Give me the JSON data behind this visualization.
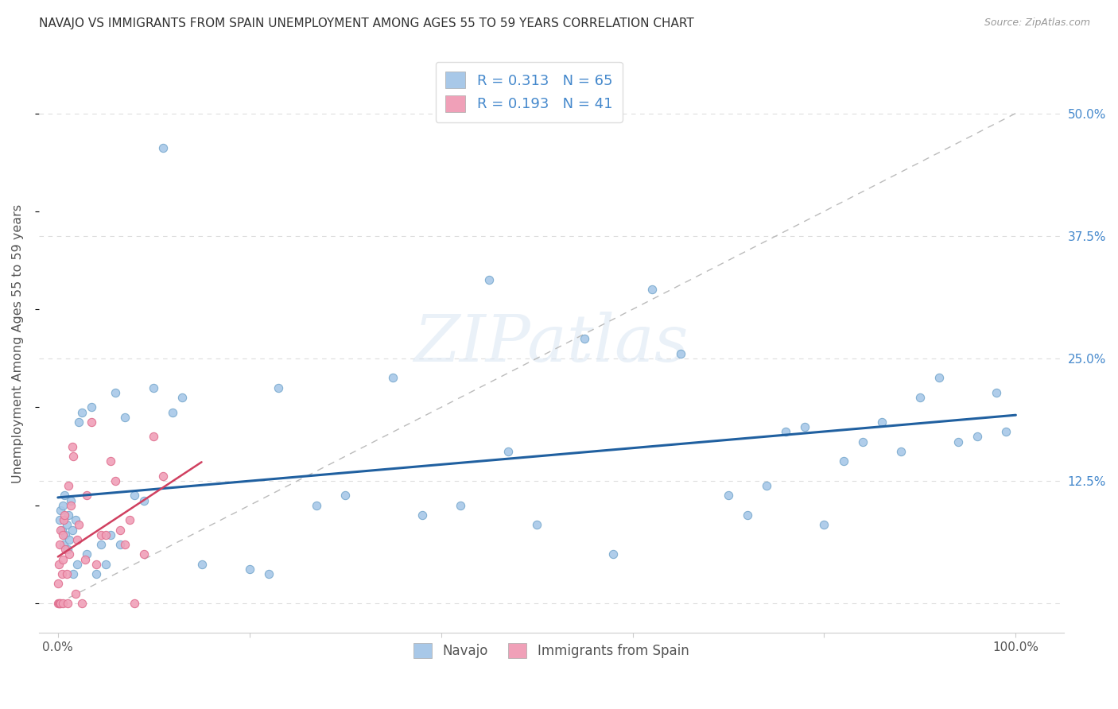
{
  "title": "NAVAJO VS IMMIGRANTS FROM SPAIN UNEMPLOYMENT AMONG AGES 55 TO 59 YEARS CORRELATION CHART",
  "source": "Source: ZipAtlas.com",
  "ylabel": "Unemployment Among Ages 55 to 59 years",
  "xlim": [
    -0.02,
    1.05
  ],
  "ylim": [
    -0.03,
    0.56
  ],
  "ytick_positions": [
    0.0,
    0.125,
    0.25,
    0.375,
    0.5
  ],
  "yticklabels_right": [
    "",
    "12.5%",
    "25.0%",
    "37.5%",
    "50.0%"
  ],
  "background_color": "#ffffff",
  "grid_color": "#dddddd",
  "watermark_text": "ZIPatlas",
  "navajo_color": "#a8c8e8",
  "spain_color": "#f0a0b8",
  "navajo_edge_color": "#7aaace",
  "spain_edge_color": "#e07090",
  "navajo_line_color": "#2060a0",
  "spain_line_color": "#d04060",
  "navajo_R": 0.313,
  "navajo_N": 65,
  "spain_R": 0.193,
  "spain_N": 41,
  "navajo_x": [
    0.002,
    0.003,
    0.004,
    0.005,
    0.006,
    0.007,
    0.008,
    0.009,
    0.01,
    0.011,
    0.012,
    0.013,
    0.015,
    0.016,
    0.018,
    0.02,
    0.022,
    0.025,
    0.03,
    0.035,
    0.04,
    0.045,
    0.05,
    0.055,
    0.06,
    0.065,
    0.07,
    0.08,
    0.09,
    0.1,
    0.11,
    0.12,
    0.13,
    0.15,
    0.2,
    0.22,
    0.23,
    0.27,
    0.3,
    0.35,
    0.38,
    0.42,
    0.45,
    0.47,
    0.5,
    0.55,
    0.58,
    0.62,
    0.65,
    0.7,
    0.72,
    0.74,
    0.76,
    0.78,
    0.8,
    0.82,
    0.84,
    0.86,
    0.88,
    0.9,
    0.92,
    0.94,
    0.96,
    0.98,
    0.99
  ],
  "navajo_y": [
    0.085,
    0.095,
    0.075,
    0.1,
    0.06,
    0.11,
    0.07,
    0.08,
    0.055,
    0.09,
    0.065,
    0.105,
    0.075,
    0.03,
    0.085,
    0.04,
    0.185,
    0.195,
    0.05,
    0.2,
    0.03,
    0.06,
    0.04,
    0.07,
    0.215,
    0.06,
    0.19,
    0.11,
    0.105,
    0.22,
    0.465,
    0.195,
    0.21,
    0.04,
    0.035,
    0.03,
    0.22,
    0.1,
    0.11,
    0.23,
    0.09,
    0.1,
    0.33,
    0.155,
    0.08,
    0.27,
    0.05,
    0.32,
    0.255,
    0.11,
    0.09,
    0.12,
    0.175,
    0.18,
    0.08,
    0.145,
    0.165,
    0.185,
    0.155,
    0.21,
    0.23,
    0.165,
    0.17,
    0.215,
    0.175
  ],
  "spain_x": [
    0.0,
    0.0,
    0.001,
    0.001,
    0.002,
    0.002,
    0.003,
    0.003,
    0.004,
    0.005,
    0.005,
    0.005,
    0.006,
    0.007,
    0.008,
    0.009,
    0.01,
    0.011,
    0.012,
    0.013,
    0.015,
    0.016,
    0.018,
    0.02,
    0.022,
    0.025,
    0.028,
    0.03,
    0.035,
    0.04,
    0.045,
    0.05,
    0.055,
    0.06,
    0.065,
    0.07,
    0.075,
    0.08,
    0.09,
    0.1,
    0.11
  ],
  "spain_y": [
    0.0,
    0.02,
    0.0,
    0.04,
    0.0,
    0.06,
    0.0,
    0.075,
    0.03,
    0.0,
    0.045,
    0.07,
    0.085,
    0.09,
    0.055,
    0.03,
    0.0,
    0.12,
    0.05,
    0.1,
    0.16,
    0.15,
    0.01,
    0.065,
    0.08,
    0.0,
    0.045,
    0.11,
    0.185,
    0.04,
    0.07,
    0.07,
    0.145,
    0.125,
    0.075,
    0.06,
    0.085,
    0.0,
    0.05,
    0.17,
    0.13
  ],
  "navajo_scatter_size": 55,
  "spain_scatter_size": 55
}
